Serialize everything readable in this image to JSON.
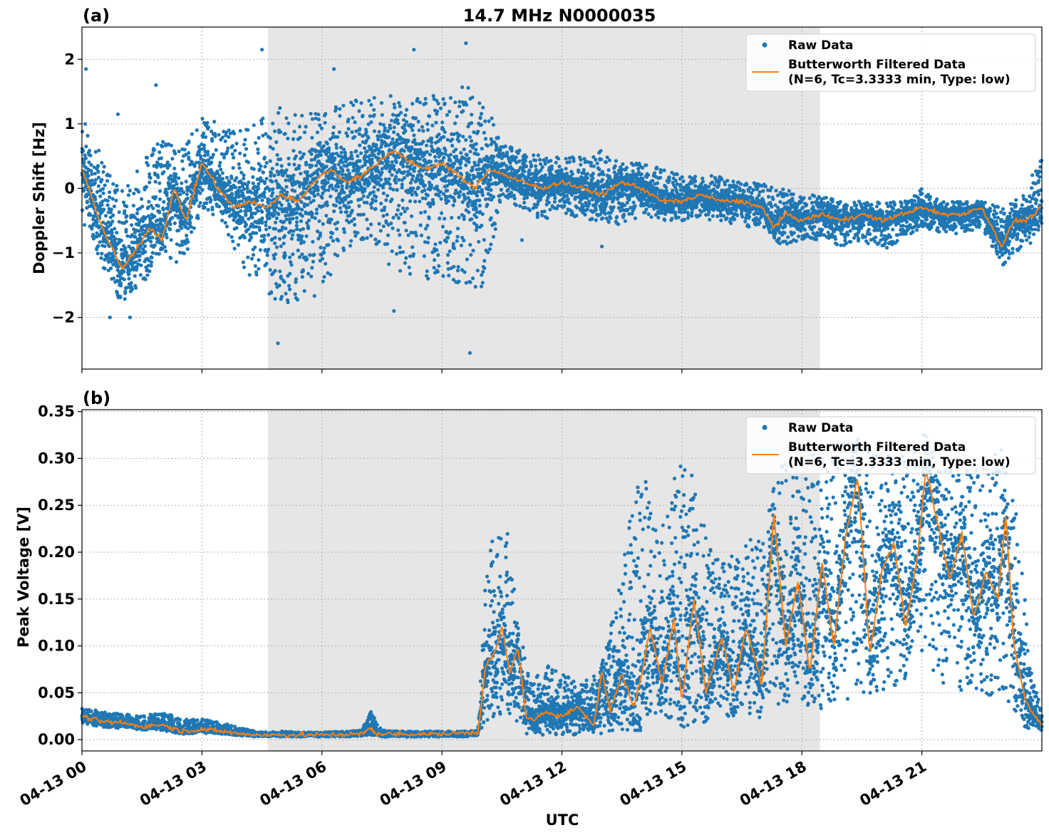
{
  "figure": {
    "title": "14.7 MHz N0000035",
    "xlabel": "UTC"
  },
  "chart_data": [
    {
      "panel_label": "(a)",
      "type": "scatter",
      "ylabel": "Doppler Shift [Hz]",
      "xlim_hours": [
        0,
        24
      ],
      "ylim": [
        -2.8,
        2.5
      ],
      "yticks": [
        2,
        1,
        0,
        -1,
        -2
      ],
      "ytick_labels": [
        "2",
        "1",
        "0",
        "−1",
        "−2"
      ],
      "xticks_hours": [
        0,
        3,
        6,
        9,
        12,
        15,
        18,
        21
      ],
      "xtick_labels": [
        "04-13 00",
        "04-13 03",
        "04-13 06",
        "04-13 09",
        "04-13 12",
        "04-13 15",
        "04-13 18",
        "04-13 21"
      ],
      "shaded_region_hours": [
        4.65,
        18.45
      ],
      "grid": true,
      "legend_position": "top-right",
      "colors": {
        "raw": "#1f77b4",
        "filtered": "#ff7f0e",
        "shade": "#e6e6e6"
      },
      "series": [
        {
          "name": "Raw Data",
          "kind": "scatter-band",
          "x": [
            0,
            0.5,
            1,
            1.5,
            2,
            2.5,
            3,
            3.5,
            4,
            4.5,
            5,
            5.5,
            6,
            6.5,
            7,
            7.5,
            8,
            8.5,
            9,
            9.5,
            10,
            10.5,
            11,
            11.5,
            12,
            12.5,
            13,
            13.5,
            14,
            14.5,
            15,
            15.5,
            16,
            16.5,
            17,
            17.5,
            18,
            18.5,
            19,
            19.5,
            20,
            20.5,
            21,
            21.5,
            22,
            22.5,
            23,
            23.5,
            24
          ],
          "y_low": [
            -0.5,
            -1.2,
            -1.8,
            -1.5,
            -1.0,
            -1.2,
            -0.3,
            -0.5,
            -1.2,
            -1.6,
            -1.8,
            -1.8,
            -1.6,
            -1.0,
            -0.8,
            -1.2,
            -1.3,
            -1.4,
            -1.5,
            -1.5,
            -1.6,
            -0.2,
            -0.3,
            -0.5,
            -0.4,
            -0.5,
            -0.5,
            -0.6,
            -0.4,
            -0.5,
            -0.5,
            -0.5,
            -0.5,
            -0.6,
            -0.6,
            -0.9,
            -0.8,
            -0.8,
            -0.9,
            -0.8,
            -1.0,
            -0.8,
            -0.6,
            -0.7,
            -0.7,
            -0.6,
            -1.2,
            -1.0,
            -0.7
          ],
          "y_high": [
            1.1,
            0.5,
            0.0,
            0.4,
            0.8,
            0.6,
            1.1,
            1.0,
            0.9,
            1.1,
            1.3,
            1.2,
            1.2,
            1.3,
            1.4,
            1.5,
            1.4,
            1.5,
            1.5,
            1.6,
            1.5,
            0.7,
            0.6,
            0.5,
            0.5,
            0.5,
            0.6,
            0.4,
            0.4,
            0.3,
            0.2,
            0.2,
            0.2,
            0.1,
            0.1,
            0.0,
            -0.1,
            -0.1,
            -0.2,
            -0.2,
            -0.2,
            -0.2,
            0.0,
            -0.2,
            -0.2,
            -0.2,
            -0.3,
            -0.1,
            0.5
          ],
          "outliers": [
            [
              0.1,
              1.85
            ],
            [
              0.9,
              1.15
            ],
            [
              1.85,
              1.6
            ],
            [
              4.5,
              2.15
            ],
            [
              6.3,
              1.85
            ],
            [
              8.3,
              2.15
            ],
            [
              9.6,
              2.25
            ],
            [
              4.9,
              -2.4
            ],
            [
              7.8,
              -1.9
            ],
            [
              9.7,
              -2.55
            ],
            [
              0.7,
              -2.0
            ],
            [
              1.2,
              -2.0
            ],
            [
              11.0,
              -0.8
            ],
            [
              13.0,
              -0.9
            ]
          ]
        },
        {
          "name": "Butterworth Filtered Data\n(N=6, Tc=3.3333 min, Type: low)",
          "kind": "line",
          "x": [
            0,
            0.5,
            1,
            1.3,
            1.7,
            2,
            2.3,
            2.6,
            3,
            3.4,
            3.8,
            4.2,
            4.6,
            5,
            5.4,
            5.8,
            6.2,
            6.6,
            7,
            7.4,
            7.8,
            8.2,
            8.6,
            9,
            9.4,
            9.8,
            10.2,
            10.6,
            11,
            11.5,
            12,
            12.5,
            13,
            13.5,
            14,
            14.5,
            15,
            15.5,
            16,
            16.5,
            17,
            17.3,
            17.6,
            18,
            18.5,
            19,
            19.5,
            20,
            20.5,
            21,
            21.5,
            22,
            22.5,
            23,
            23.3,
            23.6,
            24
          ],
          "y": [
            0.3,
            -0.6,
            -1.25,
            -1.0,
            -0.6,
            -0.8,
            0.0,
            -0.5,
            0.4,
            0.0,
            -0.3,
            -0.2,
            -0.3,
            -0.1,
            -0.2,
            0.1,
            0.3,
            0.1,
            0.2,
            0.4,
            0.6,
            0.4,
            0.3,
            0.4,
            0.2,
            0.0,
            0.3,
            0.2,
            0.1,
            0.0,
            0.1,
            0.0,
            -0.1,
            0.1,
            0.0,
            -0.2,
            -0.2,
            -0.1,
            -0.2,
            -0.2,
            -0.3,
            -0.6,
            -0.4,
            -0.5,
            -0.4,
            -0.5,
            -0.4,
            -0.5,
            -0.4,
            -0.3,
            -0.4,
            -0.4,
            -0.3,
            -0.9,
            -0.5,
            -0.5,
            -0.3
          ]
        }
      ]
    },
    {
      "panel_label": "(b)",
      "type": "scatter",
      "ylabel": "Peak Voltage [V]",
      "xlim_hours": [
        0,
        24
      ],
      "ylim": [
        -0.012,
        0.352
      ],
      "yticks": [
        0.35,
        0.3,
        0.25,
        0.2,
        0.15,
        0.1,
        0.05,
        0.0
      ],
      "ytick_labels": [
        "0.35",
        "0.30",
        "0.25",
        "0.20",
        "0.15",
        "0.10",
        "0.05",
        "0.00"
      ],
      "xticks_hours": [
        0,
        3,
        6,
        9,
        12,
        15,
        18,
        21
      ],
      "xtick_labels": [
        "04-13 00",
        "04-13 03",
        "04-13 06",
        "04-13 09",
        "04-13 12",
        "04-13 15",
        "04-13 18",
        "04-13 21"
      ],
      "shaded_region_hours": [
        4.65,
        18.45
      ],
      "grid": true,
      "legend_position": "top-right",
      "colors": {
        "raw": "#1f77b4",
        "filtered": "#ff7f0e",
        "shade": "#e6e6e6"
      },
      "series": [
        {
          "name": "Raw Data",
          "kind": "scatter-band",
          "x": [
            0,
            0.5,
            1,
            1.5,
            2,
            2.5,
            3,
            3.5,
            4,
            4.5,
            5,
            5.5,
            6,
            6.5,
            7,
            7.2,
            7.5,
            8,
            8.5,
            9,
            9.5,
            9.9,
            10.1,
            10.3,
            10.6,
            10.9,
            11.2,
            11.6,
            12,
            12.5,
            13,
            13.3,
            13.7,
            14,
            14.4,
            14.8,
            15.2,
            15.6,
            16,
            16.5,
            17,
            17.5,
            18,
            18.5,
            19,
            19.5,
            20,
            20.5,
            21,
            21.5,
            22,
            22.5,
            23,
            23.4,
            23.7,
            24
          ],
          "y_low": [
            0.018,
            0.013,
            0.012,
            0.01,
            0.01,
            0.006,
            0.007,
            0.006,
            0.004,
            0.003,
            0.003,
            0.003,
            0.003,
            0.003,
            0.004,
            0.005,
            0.003,
            0.003,
            0.003,
            0.003,
            0.003,
            0.004,
            0.02,
            0.02,
            0.03,
            0.01,
            0.005,
            0.005,
            0.005,
            0.005,
            0.005,
            0.01,
            0.01,
            0.01,
            0.02,
            0.02,
            0.01,
            0.02,
            0.02,
            0.03,
            0.02,
            0.03,
            0.04,
            0.03,
            0.04,
            0.05,
            0.05,
            0.06,
            0.09,
            0.06,
            0.05,
            0.04,
            0.05,
            0.02,
            0.01,
            0.008
          ],
          "y_high": [
            0.035,
            0.03,
            0.028,
            0.025,
            0.03,
            0.022,
            0.022,
            0.018,
            0.012,
            0.008,
            0.009,
            0.008,
            0.008,
            0.009,
            0.01,
            0.033,
            0.01,
            0.009,
            0.009,
            0.009,
            0.009,
            0.01,
            0.19,
            0.22,
            0.24,
            0.13,
            0.06,
            0.08,
            0.07,
            0.06,
            0.08,
            0.14,
            0.24,
            0.3,
            0.22,
            0.28,
            0.31,
            0.22,
            0.19,
            0.21,
            0.22,
            0.3,
            0.29,
            0.32,
            0.32,
            0.32,
            0.3,
            0.31,
            0.33,
            0.3,
            0.29,
            0.3,
            0.31,
            0.25,
            0.08,
            0.03
          ]
        },
        {
          "name": "Butterworth Filtered Data\n(N=6, Tc=3.3333 min, Type: low)",
          "kind": "line",
          "x": [
            0,
            0.5,
            1,
            1.5,
            2,
            2.5,
            3,
            3.5,
            4,
            4.5,
            5,
            6,
            7,
            7.2,
            7.4,
            8,
            9,
            9.9,
            10.1,
            10.3,
            10.5,
            10.7,
            10.9,
            11.1,
            11.3,
            11.6,
            12,
            12.4,
            12.8,
            13,
            13.2,
            13.5,
            13.8,
            14,
            14.2,
            14.5,
            14.8,
            15,
            15.3,
            15.6,
            16,
            16.3,
            16.6,
            17,
            17.3,
            17.6,
            17.9,
            18.2,
            18.5,
            18.8,
            19.1,
            19.4,
            19.7,
            20,
            20.3,
            20.6,
            20.9,
            21.1,
            21.4,
            21.7,
            22,
            22.3,
            22.6,
            22.9,
            23.1,
            23.3,
            23.6,
            24
          ],
          "y": [
            0.025,
            0.019,
            0.018,
            0.014,
            0.016,
            0.009,
            0.011,
            0.009,
            0.006,
            0.005,
            0.005,
            0.005,
            0.006,
            0.012,
            0.006,
            0.006,
            0.006,
            0.008,
            0.08,
            0.09,
            0.12,
            0.07,
            0.1,
            0.025,
            0.02,
            0.03,
            0.025,
            0.035,
            0.015,
            0.075,
            0.03,
            0.07,
            0.035,
            0.07,
            0.12,
            0.06,
            0.13,
            0.04,
            0.15,
            0.05,
            0.11,
            0.05,
            0.12,
            0.06,
            0.24,
            0.1,
            0.17,
            0.07,
            0.19,
            0.1,
            0.22,
            0.28,
            0.09,
            0.18,
            0.21,
            0.12,
            0.2,
            0.29,
            0.23,
            0.17,
            0.22,
            0.13,
            0.18,
            0.15,
            0.24,
            0.1,
            0.04,
            0.015
          ]
        }
      ]
    }
  ]
}
